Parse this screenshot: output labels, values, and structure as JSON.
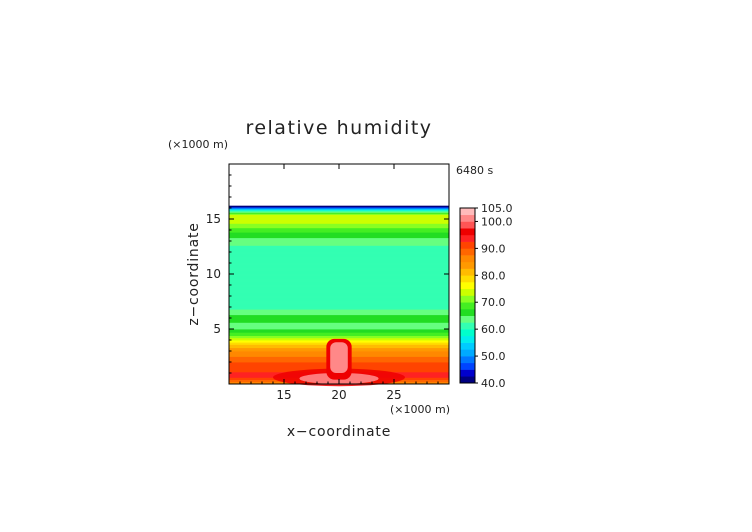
{
  "chart_data": {
    "type": "heatmap",
    "title": "relative humidity",
    "time_label": "6480 s",
    "xlabel": "x−coordinate",
    "ylabel": "z−coordinate",
    "x_unit": "(×1000 m)",
    "z_unit": "(×1000 m)",
    "xlim": [
      10,
      30
    ],
    "ylim": [
      0,
      20
    ],
    "x_ticks": [
      15,
      20,
      25
    ],
    "z_ticks": [
      5,
      10,
      15
    ],
    "x_tick_labels": [
      "15",
      "20",
      "25"
    ],
    "z_tick_labels": [
      "5",
      "10",
      "15"
    ],
    "model_top_km": 16.2,
    "colorbar": {
      "min": 40,
      "max": 105,
      "step": 2.5,
      "tick_labels": [
        "105.0",
        "100.0",
        "90.0",
        "80.0",
        "70.0",
        "60.0",
        "50.0",
        "40.0"
      ],
      "tick_values": [
        105,
        100,
        90,
        80,
        70,
        60,
        50,
        40
      ],
      "colors": [
        "#000080",
        "#0000cd",
        "#0044ff",
        "#0077ff",
        "#00aaff",
        "#00ccff",
        "#00eeee",
        "#00ffcc",
        "#33ffb2",
        "#66ff80",
        "#22dd22",
        "#44ee22",
        "#88ff22",
        "#ccff00",
        "#ffff00",
        "#ffdd00",
        "#ffbb00",
        "#ff9900",
        "#ff8800",
        "#ff6600",
        "#ff4400",
        "#ff2222",
        "#ee0000",
        "#ff5555",
        "#ff8888",
        "#ffbbbb"
      ]
    },
    "horizontal_profile": [
      {
        "z": 16.2,
        "rh": 40
      },
      {
        "z": 16.0,
        "rh": 48
      },
      {
        "z": 15.8,
        "rh": 60
      },
      {
        "z": 15.3,
        "rh": 75
      },
      {
        "z": 14.5,
        "rh": 72
      },
      {
        "z": 13.5,
        "rh": 66
      },
      {
        "z": 12.5,
        "rh": 62
      },
      {
        "z": 11.5,
        "rh": 60
      },
      {
        "z": 9.0,
        "rh": 60
      },
      {
        "z": 7.0,
        "rh": 61
      },
      {
        "z": 6.0,
        "rh": 67
      },
      {
        "z": 5.2,
        "rh": 63
      },
      {
        "z": 4.4,
        "rh": 70
      },
      {
        "z": 3.8,
        "rh": 78
      },
      {
        "z": 3.0,
        "rh": 85
      },
      {
        "z": 2.0,
        "rh": 90
      },
      {
        "z": 1.2,
        "rh": 92
      },
      {
        "z": 0.7,
        "rh": 95
      },
      {
        "z": 0.3,
        "rh": 88
      },
      {
        "z": 0.0,
        "rh": 85
      }
    ],
    "plume": {
      "x_center": 20,
      "x_half_width": 1.0,
      "top": 4.0,
      "rh_core": 102,
      "rh_shell": 97,
      "surface_spread_half_width": 6.0,
      "surface_rh": 100
    }
  }
}
